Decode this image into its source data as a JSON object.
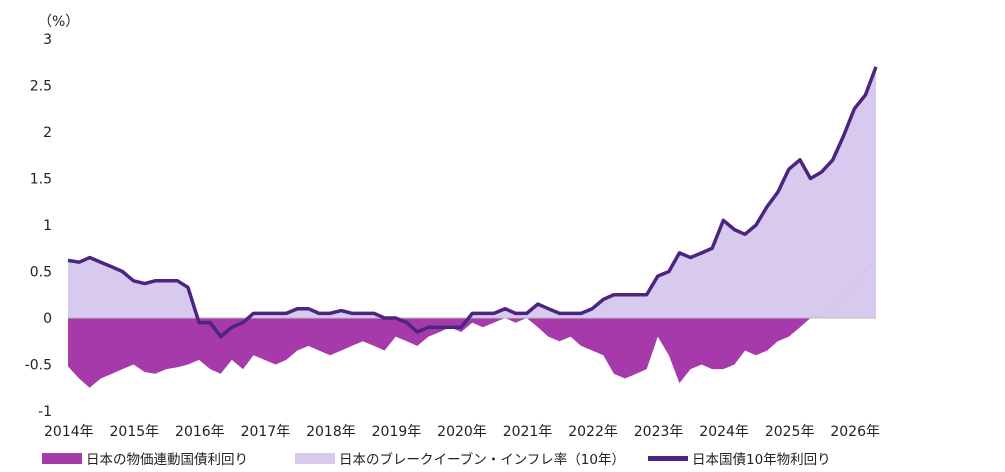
{
  "chart_data": {
    "type": "area",
    "unit_label": "（%）",
    "ylim": [
      -1,
      3
    ],
    "y_ticks": [
      -1,
      -0.5,
      0,
      0.5,
      1,
      1.5,
      2,
      2.5,
      3
    ],
    "y_tick_labels": [
      "-1",
      "-0.5",
      "0",
      "0.5",
      "1",
      "1.5",
      "2",
      "2.5",
      "3"
    ],
    "x_tick_labels": [
      "2014年",
      "2015年",
      "2016年",
      "2017年",
      "2018年",
      "2019年",
      "2020年",
      "2021年",
      "2022年",
      "2023年",
      "2024年",
      "2025年",
      "2026年"
    ],
    "x_range": [
      2014.0,
      2026.33
    ],
    "x": [
      2014.0,
      2014.17,
      2014.33,
      2014.5,
      2014.67,
      2014.83,
      2015.0,
      2015.17,
      2015.33,
      2015.5,
      2015.67,
      2015.83,
      2016.0,
      2016.17,
      2016.33,
      2016.5,
      2016.67,
      2016.83,
      2017.0,
      2017.17,
      2017.33,
      2017.5,
      2017.67,
      2017.83,
      2018.0,
      2018.17,
      2018.33,
      2018.5,
      2018.67,
      2018.83,
      2019.0,
      2019.17,
      2019.33,
      2019.5,
      2019.67,
      2019.83,
      2020.0,
      2020.17,
      2020.33,
      2020.5,
      2020.67,
      2020.83,
      2021.0,
      2021.17,
      2021.33,
      2021.5,
      2021.67,
      2021.83,
      2022.0,
      2022.17,
      2022.33,
      2022.5,
      2022.67,
      2022.83,
      2023.0,
      2023.17,
      2023.33,
      2023.5,
      2023.67,
      2023.83,
      2024.0,
      2024.17,
      2024.33,
      2024.5,
      2024.67,
      2024.83,
      2025.0,
      2025.17,
      2025.33,
      2025.5,
      2025.67,
      2025.83,
      2026.0,
      2026.17,
      2026.33
    ],
    "series": [
      {
        "name": "日本の物価連動国債利回り",
        "color": "#a63aaa",
        "values": [
          -0.52,
          -0.65,
          -0.75,
          -0.65,
          -0.6,
          -0.55,
          -0.5,
          -0.58,
          -0.6,
          -0.55,
          -0.53,
          -0.5,
          -0.45,
          -0.55,
          -0.6,
          -0.45,
          -0.55,
          -0.4,
          -0.45,
          -0.5,
          -0.45,
          -0.35,
          -0.3,
          -0.35,
          -0.4,
          -0.35,
          -0.3,
          -0.25,
          -0.3,
          -0.35,
          -0.2,
          -0.25,
          -0.3,
          -0.2,
          -0.15,
          -0.1,
          -0.15,
          -0.05,
          -0.1,
          -0.05,
          0.0,
          -0.05,
          0.0,
          -0.1,
          -0.2,
          -0.25,
          -0.2,
          -0.3,
          -0.35,
          -0.4,
          -0.6,
          -0.65,
          -0.6,
          -0.55,
          -0.2,
          -0.4,
          -0.7,
          -0.55,
          -0.5,
          -0.55,
          -0.55,
          -0.5,
          -0.35,
          -0.4,
          -0.35,
          -0.25,
          -0.2,
          -0.1,
          0.0,
          0.02,
          0.1,
          0.25,
          0.35,
          0.5,
          0.65
        ]
      },
      {
        "name": "日本のブレークイーブン・インフレ率（10年）",
        "color": "#d8c9ef",
        "values": [
          1.14,
          1.25,
          1.4,
          1.25,
          1.15,
          1.05,
          0.9,
          0.95,
          1.0,
          0.95,
          0.93,
          0.83,
          0.4,
          0.5,
          0.4,
          0.35,
          0.5,
          0.45,
          0.5,
          0.55,
          0.5,
          0.45,
          0.4,
          0.4,
          0.45,
          0.43,
          0.35,
          0.3,
          0.35,
          0.35,
          0.2,
          0.2,
          0.15,
          0.1,
          0.05,
          0.0,
          0.05,
          0.1,
          0.15,
          0.1,
          0.1,
          0.1,
          0.05,
          0.25,
          0.3,
          0.3,
          0.25,
          0.35,
          0.45,
          0.6,
          0.85,
          0.9,
          0.85,
          0.8,
          0.65,
          0.9,
          1.4,
          1.2,
          1.2,
          1.3,
          1.6,
          1.45,
          1.25,
          1.4,
          1.55,
          1.6,
          1.8,
          1.8,
          1.5,
          1.55,
          1.6,
          1.7,
          1.9,
          1.9,
          2.05
        ]
      },
      {
        "name": "日本国債10年物利回り",
        "color": "#4b2580",
        "values": [
          0.62,
          0.6,
          0.65,
          0.6,
          0.55,
          0.5,
          0.4,
          0.37,
          0.4,
          0.4,
          0.4,
          0.33,
          -0.05,
          -0.05,
          -0.2,
          -0.1,
          -0.05,
          0.05,
          0.05,
          0.05,
          0.05,
          0.1,
          0.1,
          0.05,
          0.05,
          0.08,
          0.05,
          0.05,
          0.05,
          0.0,
          0.0,
          -0.05,
          -0.15,
          -0.1,
          -0.1,
          -0.1,
          -0.1,
          0.05,
          0.05,
          0.05,
          0.1,
          0.05,
          0.05,
          0.15,
          0.1,
          0.05,
          0.05,
          0.05,
          0.1,
          0.2,
          0.25,
          0.25,
          0.25,
          0.25,
          0.45,
          0.5,
          0.7,
          0.65,
          0.7,
          0.75,
          1.05,
          0.95,
          0.9,
          1.0,
          1.2,
          1.35,
          1.6,
          1.7,
          1.5,
          1.57,
          1.7,
          1.95,
          2.25,
          2.4,
          2.7
        ]
      }
    ],
    "legend_position": "bottom",
    "grid": false
  }
}
